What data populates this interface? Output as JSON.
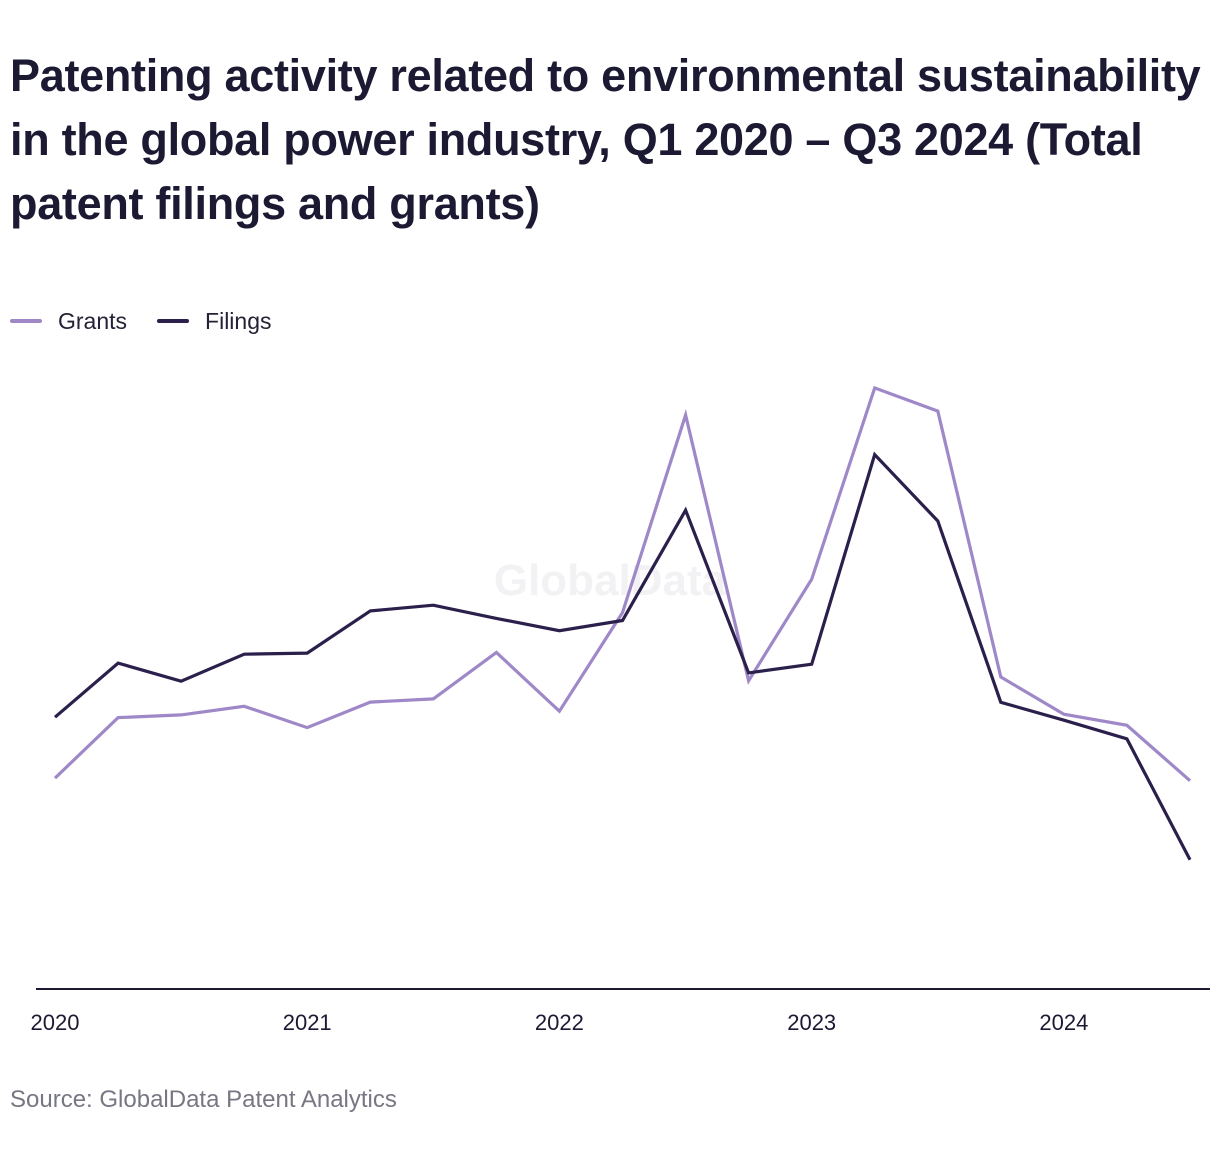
{
  "title": "Patenting activity related to environmental sustainability in the global power industry, Q1 2020 – Q3 2024 (Total patent filings and grants)",
  "legend": [
    {
      "label": "Grants",
      "color": "#9f88c8"
    },
    {
      "label": "Filings",
      "color": "#2b1f4b"
    }
  ],
  "watermark": "GlobalData",
  "source": "Source: GlobalData Patent Analytics",
  "chart_data": {
    "type": "line",
    "x": [
      "Q1 2020",
      "Q2 2020",
      "Q3 2020",
      "Q4 2020",
      "Q1 2021",
      "Q2 2021",
      "Q3 2021",
      "Q4 2021",
      "Q1 2022",
      "Q2 2022",
      "Q3 2022",
      "Q4 2022",
      "Q1 2023",
      "Q2 2023",
      "Q3 2023",
      "Q4 2023",
      "Q1 2024",
      "Q2 2024",
      "Q3 2024"
    ],
    "xticks": [
      "2020",
      "2021",
      "2022",
      "2023",
      "2024"
    ],
    "xtick_positions": [
      0,
      4,
      8,
      12,
      16
    ],
    "series": [
      {
        "name": "Grants",
        "color": "#9f88c8",
        "values": [
          1990,
          2274,
          2287,
          2327,
          2227,
          2347,
          2362,
          2580,
          2304,
          2767,
          3695,
          2447,
          2924,
          3822,
          3713,
          2465,
          2290,
          2238,
          1978
        ]
      },
      {
        "name": "Filings",
        "color": "#2b1f4b",
        "values": [
          2276,
          2530,
          2445,
          2572,
          2577,
          2775,
          2802,
          2740,
          2682,
          2730,
          3248,
          2484,
          2525,
          3509,
          3197,
          2346,
          2262,
          2174,
          1607
        ]
      }
    ],
    "ylim": [
      1000,
      4000
    ],
    "grid": false,
    "legend_position": "top-left"
  }
}
